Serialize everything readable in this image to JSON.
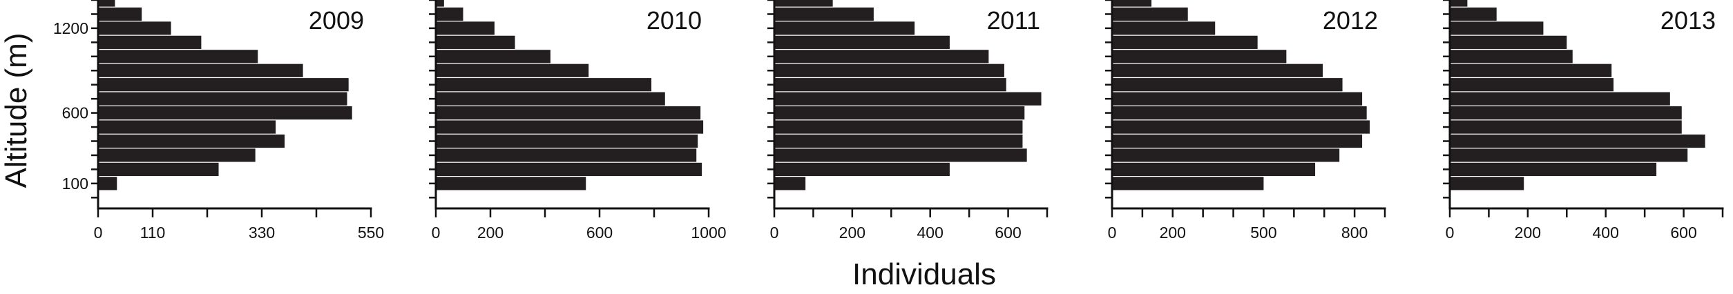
{
  "figure": {
    "ylabel": "Altitude (m)",
    "xlabel": "Individuals",
    "bar_color": "#231f20"
  },
  "chart_data": [
    {
      "type": "bar",
      "orientation": "horizontal",
      "title": "2009",
      "altitude_bins": [
        100,
        200,
        300,
        400,
        500,
        600,
        700,
        800,
        900,
        1000,
        1100,
        1200,
        1300,
        1400
      ],
      "values": [
        38,
        243,
        317,
        376,
        358,
        512,
        502,
        505,
        413,
        322,
        208,
        147,
        88,
        34
      ],
      "xticks": [
        0,
        110,
        330,
        550
      ],
      "xticks_minor": [
        0,
        110,
        220,
        330,
        440,
        550
      ],
      "xlim": [
        0,
        550
      ],
      "yticks": [
        100,
        600,
        1200
      ],
      "ylim": [
        0,
        1400
      ]
    },
    {
      "type": "bar",
      "orientation": "horizontal",
      "title": "2010",
      "altitude_bins": [
        100,
        200,
        300,
        400,
        500,
        600,
        700,
        800,
        900,
        1000,
        1100,
        1200,
        1300,
        1400
      ],
      "values": [
        550,
        975,
        955,
        960,
        980,
        970,
        840,
        790,
        560,
        420,
        290,
        215,
        100,
        30
      ],
      "xticks": [
        0,
        200,
        600,
        1000
      ],
      "xticks_minor": [
        0,
        200,
        400,
        600,
        800,
        1000
      ],
      "xlim": [
        0,
        1000
      ],
      "yticks": [],
      "ylim": [
        0,
        1400
      ]
    },
    {
      "type": "bar",
      "orientation": "horizontal",
      "title": "2011",
      "altitude_bins": [
        100,
        200,
        300,
        400,
        500,
        600,
        700,
        800,
        900,
        1000,
        1100,
        1200,
        1300,
        1400
      ],
      "values": [
        80,
        450,
        648,
        637,
        637,
        642,
        685,
        595,
        590,
        550,
        450,
        360,
        255,
        150
      ],
      "xticks": [
        0,
        200,
        400,
        600
      ],
      "xticks_minor": [
        0,
        100,
        200,
        300,
        400,
        500,
        600,
        700
      ],
      "xlim": [
        0,
        700
      ],
      "yticks": [],
      "ylim": [
        0,
        1400
      ]
    },
    {
      "type": "bar",
      "orientation": "horizontal",
      "title": "2012",
      "altitude_bins": [
        100,
        200,
        300,
        400,
        500,
        600,
        700,
        800,
        900,
        1000,
        1100,
        1200,
        1300,
        1400
      ],
      "values": [
        500,
        670,
        750,
        825,
        850,
        840,
        825,
        760,
        695,
        575,
        480,
        340,
        250,
        130
      ],
      "xticks": [
        0,
        200,
        500,
        800
      ],
      "xticks_minor": [
        0,
        100,
        200,
        300,
        400,
        500,
        600,
        700,
        800,
        900
      ],
      "xlim": [
        0,
        900
      ],
      "yticks": [],
      "ylim": [
        0,
        1400
      ]
    },
    {
      "type": "bar",
      "orientation": "horizontal",
      "title": "2013",
      "altitude_bins": [
        100,
        200,
        300,
        400,
        500,
        600,
        700,
        800,
        900,
        1000,
        1100,
        1200,
        1300,
        1400
      ],
      "values": [
        190,
        530,
        610,
        655,
        595,
        595,
        565,
        420,
        415,
        315,
        300,
        240,
        120,
        45
      ],
      "xticks": [
        0,
        200,
        400,
        600
      ],
      "xticks_minor": [
        0,
        100,
        200,
        300,
        400,
        500,
        600,
        700
      ],
      "xlim": [
        0,
        700
      ],
      "yticks": [],
      "ylim": [
        0,
        1400
      ]
    }
  ]
}
